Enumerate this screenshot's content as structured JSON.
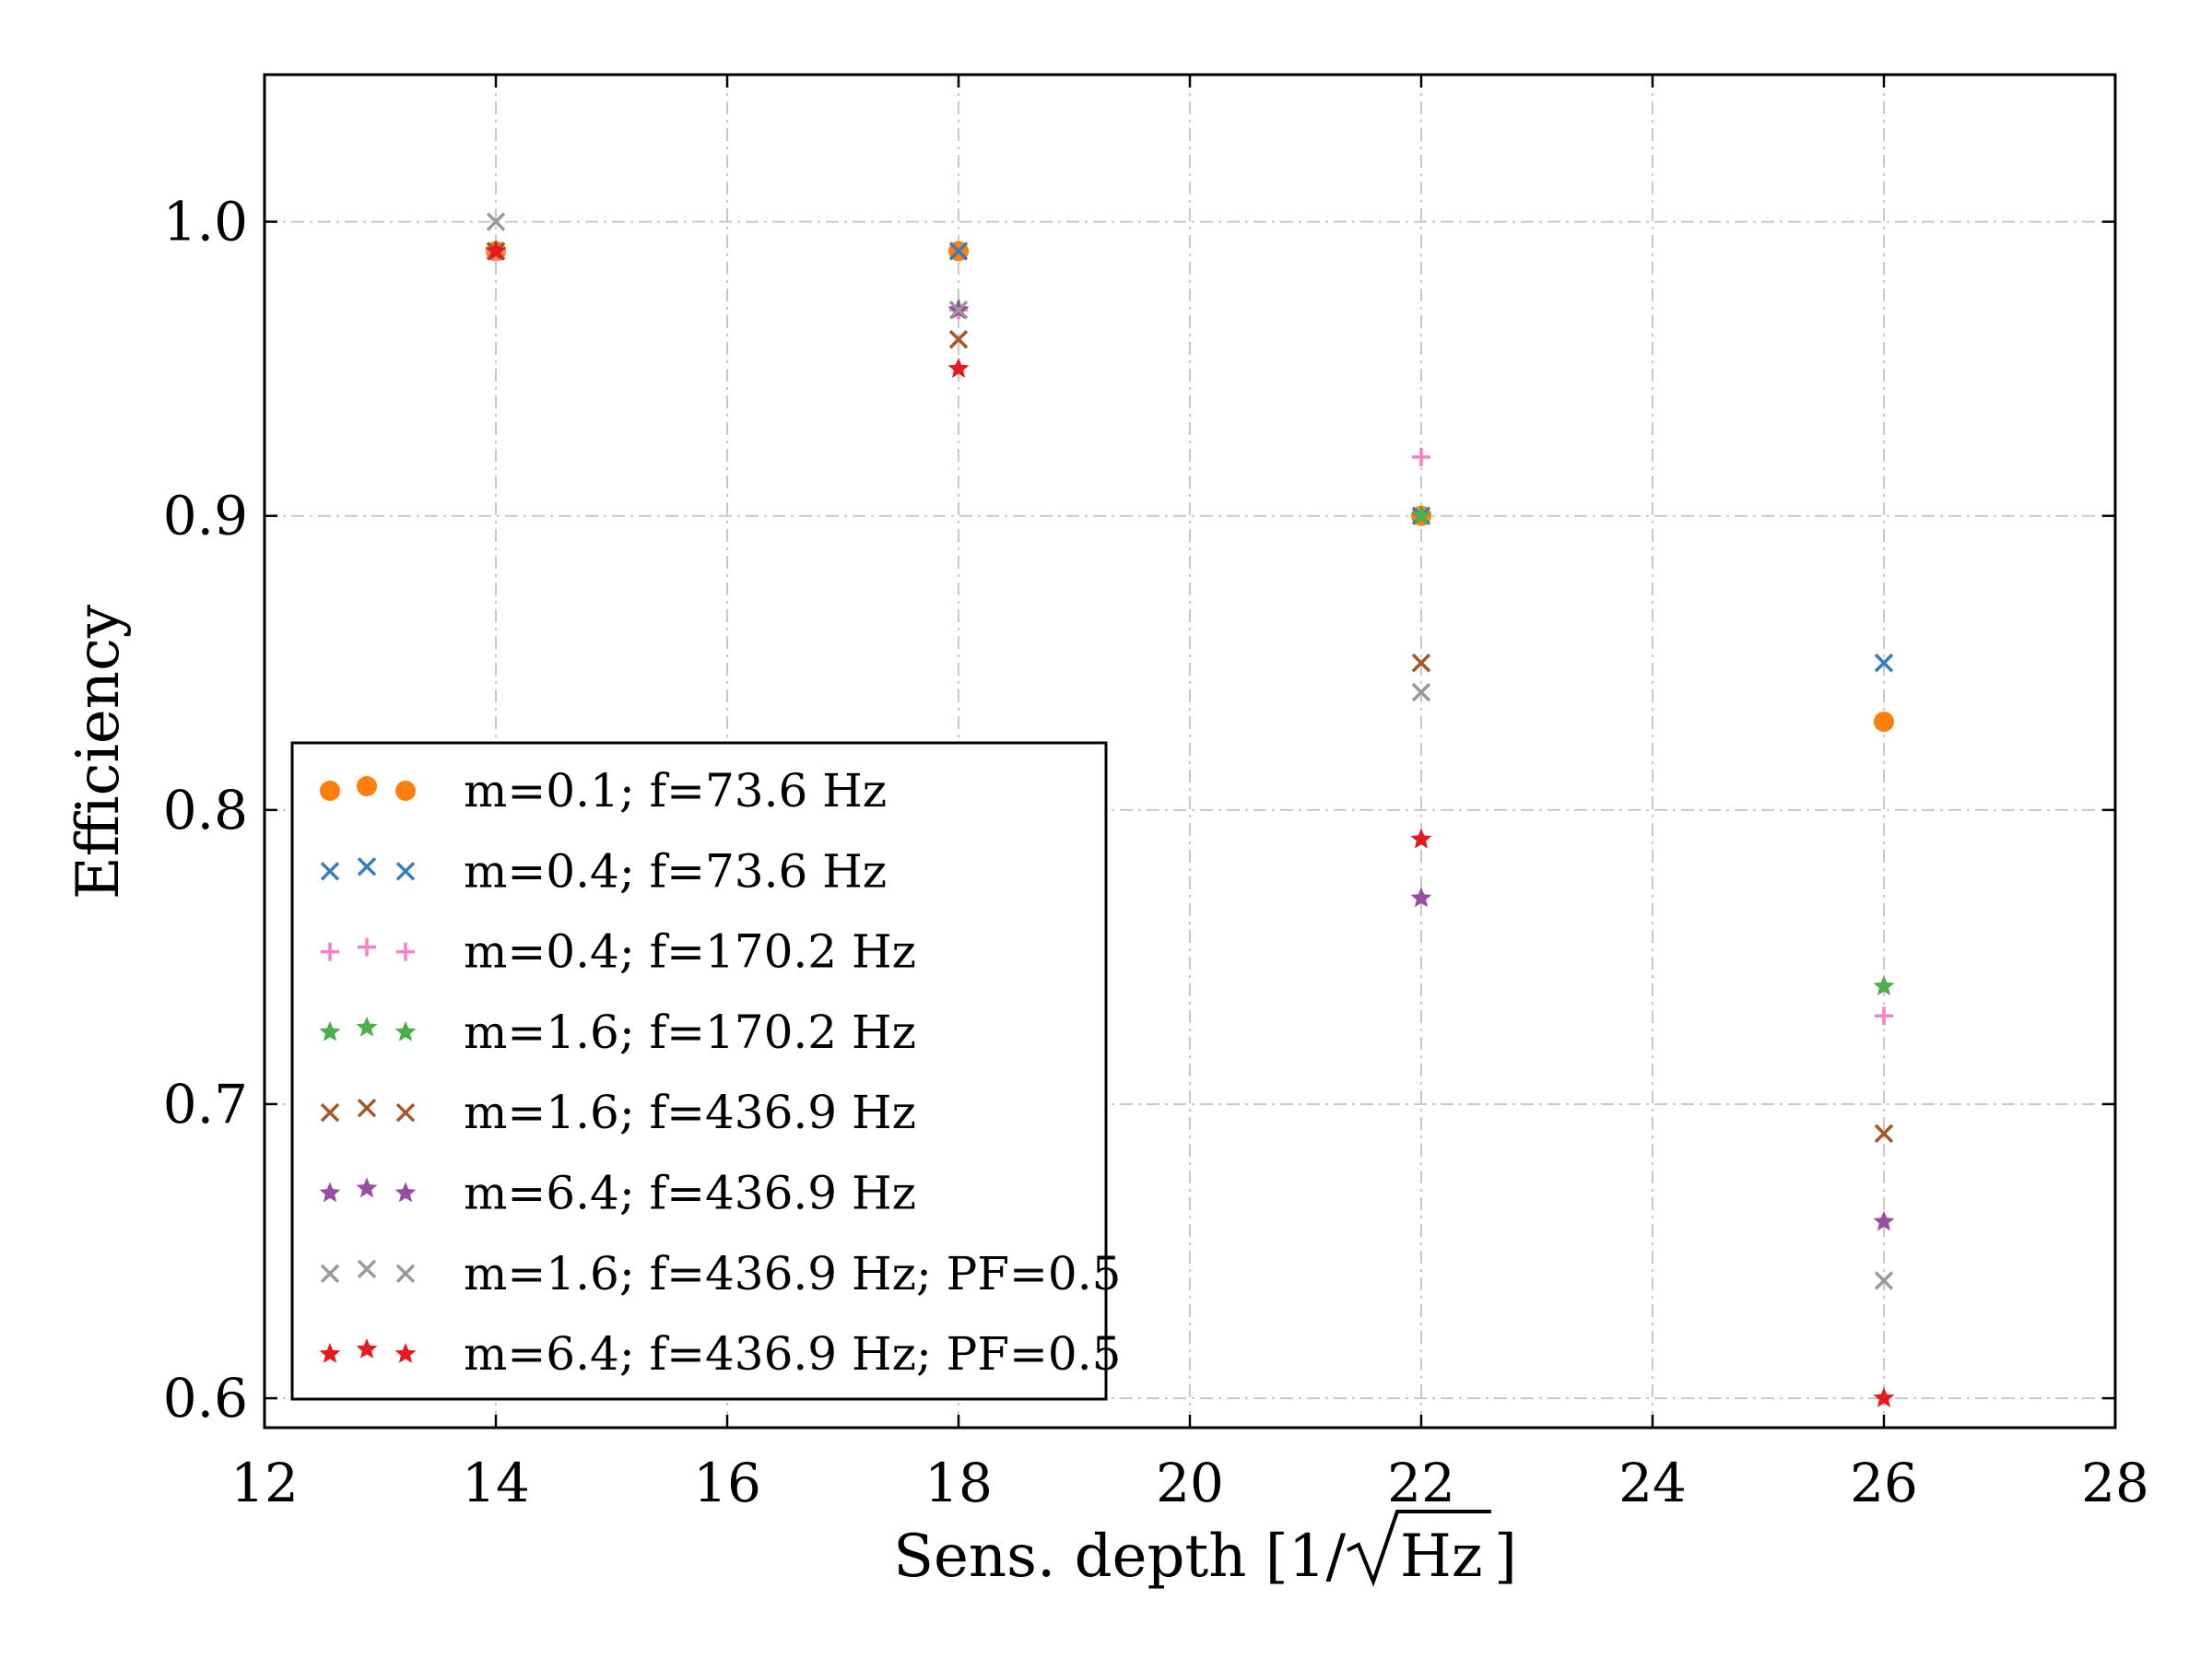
{
  "chart_data": {
    "type": "scatter",
    "xlabel": "Sens. depth [1/√Hz]",
    "xlabel_main": "Sens. depth [1/",
    "xlabel_sqrt_term": "Hz",
    "xlabel_close": "]",
    "ylabel": "Efficiency",
    "xlim": [
      12,
      28
    ],
    "ylim": [
      0.59,
      1.05
    ],
    "x_ticks": [
      12,
      14,
      16,
      18,
      20,
      22,
      24,
      26,
      28
    ],
    "x_tick_labels": [
      "12",
      "14",
      "16",
      "18",
      "20",
      "22",
      "24",
      "26",
      "28"
    ],
    "y_ticks": [
      0.6,
      0.7,
      0.8,
      0.9,
      1.0
    ],
    "y_tick_labels": [
      "0.6",
      "0.7",
      "0.8",
      "0.9",
      "1.0"
    ],
    "grid": true,
    "legend_position": "lower-left",
    "series": [
      {
        "name": "m=0.1; f=73.6 Hz",
        "marker": "circle",
        "color": "#ff7f0e",
        "x": [
          14,
          18,
          22,
          26
        ],
        "y": [
          0.99,
          0.99,
          0.9,
          0.83
        ]
      },
      {
        "name": "m=0.4; f=73.6 Hz",
        "marker": "x",
        "color": "#377eb8",
        "x": [
          14,
          18,
          22,
          26
        ],
        "y": [
          0.99,
          0.99,
          0.9,
          0.85
        ]
      },
      {
        "name": "m=0.4; f=170.2 Hz",
        "marker": "plus",
        "color": "#f781bf",
        "x": [
          14,
          18,
          22,
          26
        ],
        "y": [
          0.99,
          0.97,
          0.92,
          0.73
        ]
      },
      {
        "name": "m=1.6; f=170.2 Hz",
        "marker": "star",
        "color": "#4daf4a",
        "x": [
          14,
          18,
          22,
          26
        ],
        "y": [
          0.99,
          0.97,
          0.9,
          0.74
        ]
      },
      {
        "name": "m=1.6; f=436.9 Hz",
        "marker": "x",
        "color": "#a65628",
        "x": [
          14,
          18,
          22,
          26
        ],
        "y": [
          0.99,
          0.96,
          0.85,
          0.69
        ]
      },
      {
        "name": "m=6.4; f=436.9 Hz",
        "marker": "star",
        "color": "#984ea3",
        "x": [
          14,
          18,
          22,
          26
        ],
        "y": [
          0.99,
          0.97,
          0.77,
          0.66
        ]
      },
      {
        "name": "m=1.6; f=436.9 Hz; PF=0.5",
        "marker": "x",
        "color": "#999999",
        "x": [
          14,
          18,
          22,
          26
        ],
        "y": [
          1.0,
          0.97,
          0.84,
          0.64
        ]
      },
      {
        "name": "m=6.4; f=436.9 Hz; PF=0.5",
        "marker": "star",
        "color": "#e41a1c",
        "x": [
          14,
          18,
          22,
          26
        ],
        "y": [
          0.99,
          0.95,
          0.79,
          0.6
        ]
      }
    ]
  }
}
